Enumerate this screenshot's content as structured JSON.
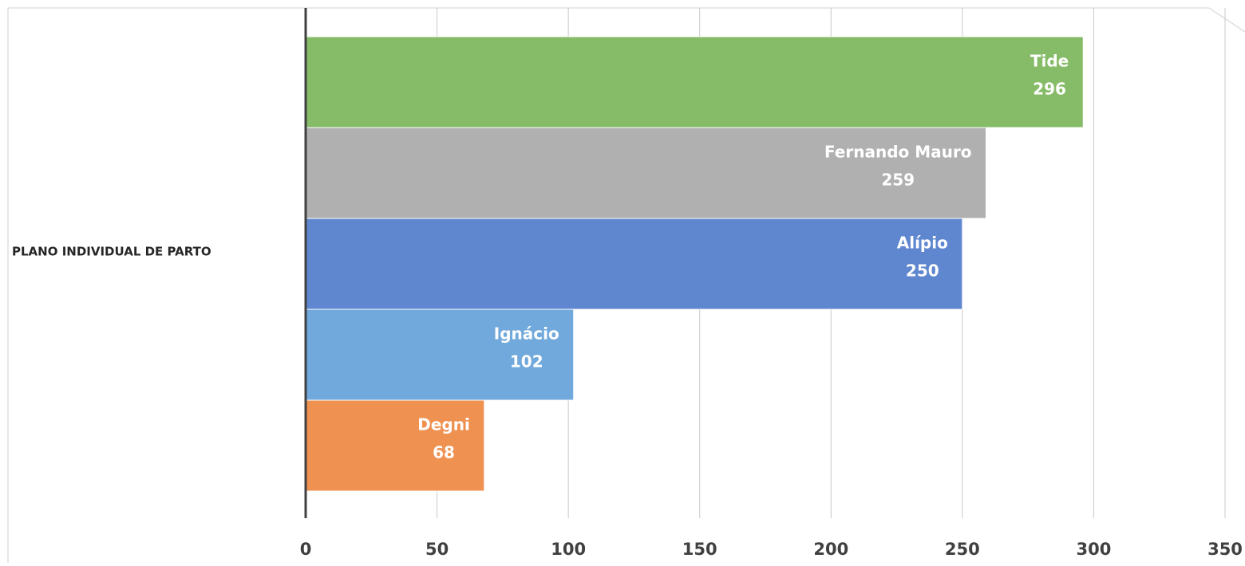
{
  "chart_data": {
    "type": "hbar",
    "categories": [
      "PLANO INDIVIDUAL DE PARTO"
    ],
    "series": [
      {
        "name": "Tide",
        "color": "#86bb67",
        "values": [
          296
        ]
      },
      {
        "name": "Fernando Mauro",
        "color": "#b0b0b0",
        "values": [
          259
        ]
      },
      {
        "name": "Alípio",
        "color": "#5f87cf",
        "values": [
          250
        ]
      },
      {
        "name": "Ignácio",
        "color": "#71a9dc",
        "values": [
          102
        ]
      },
      {
        "name": "Degni",
        "color": "#ef9151",
        "values": [
          68
        ]
      }
    ],
    "xlim": [
      0,
      350
    ],
    "xticks": [
      0,
      50,
      100,
      150,
      200,
      250,
      300,
      350
    ],
    "grid": true
  }
}
